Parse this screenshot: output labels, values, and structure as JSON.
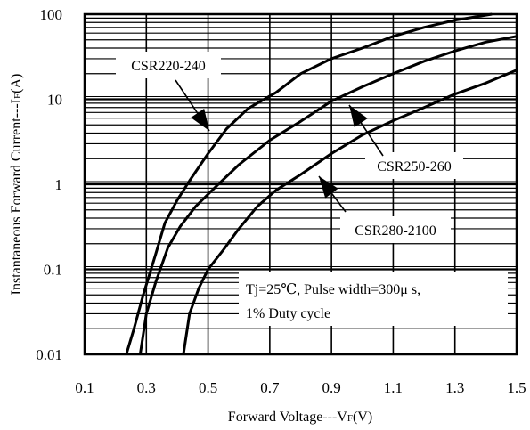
{
  "chart_data": {
    "type": "line",
    "title": "",
    "xlabel": "Forward Voltage---V",
    "xlabel_sub": "F",
    "xlabel_unit": "(V)",
    "ylabel": "Instantaneous Forward Current---I",
    "ylabel_sub": "F",
    "ylabel_unit": "(A)",
    "x_scale": "linear",
    "y_scale": "log",
    "xlim": [
      0.1,
      1.5
    ],
    "ylim": [
      0.01,
      100
    ],
    "x_ticks": [
      0.1,
      0.3,
      0.5,
      0.7,
      0.9,
      1.1,
      1.3,
      1.5
    ],
    "x_tick_labels": [
      "0.1",
      "0.3",
      "0.5",
      "0.7",
      "0.9",
      "1.1",
      "1.3",
      "1.5"
    ],
    "y_ticks": [
      0.01,
      0.1,
      1,
      10,
      100
    ],
    "y_tick_labels": [
      "0.01",
      "0.1",
      "1",
      "10",
      "100"
    ],
    "grid": true,
    "series": [
      {
        "name": "CSR220-240",
        "points": [
          [
            0.235,
            0.01
          ],
          [
            0.26,
            0.02
          ],
          [
            0.29,
            0.05
          ],
          [
            0.33,
            0.15
          ],
          [
            0.36,
            0.35
          ],
          [
            0.4,
            0.65
          ],
          [
            0.44,
            1.1
          ],
          [
            0.5,
            2.3
          ],
          [
            0.56,
            4.5
          ],
          [
            0.63,
            7.8
          ],
          [
            0.72,
            12
          ],
          [
            0.8,
            20
          ],
          [
            0.9,
            30
          ],
          [
            1.0,
            40
          ],
          [
            1.1,
            55
          ],
          [
            1.2,
            70
          ],
          [
            1.3,
            85
          ],
          [
            1.42,
            100
          ]
        ]
      },
      {
        "name": "CSR250-260",
        "points": [
          [
            0.28,
            0.01
          ],
          [
            0.3,
            0.03
          ],
          [
            0.33,
            0.07
          ],
          [
            0.37,
            0.18
          ],
          [
            0.41,
            0.32
          ],
          [
            0.46,
            0.55
          ],
          [
            0.52,
            0.9
          ],
          [
            0.6,
            1.7
          ],
          [
            0.7,
            3.3
          ],
          [
            0.8,
            5.5
          ],
          [
            0.9,
            9.5
          ],
          [
            1.0,
            14
          ],
          [
            1.1,
            20
          ],
          [
            1.2,
            28
          ],
          [
            1.3,
            37
          ],
          [
            1.4,
            47
          ],
          [
            1.5,
            55
          ]
        ]
      },
      {
        "name": "CSR280-2100",
        "points": [
          [
            0.42,
            0.01
          ],
          [
            0.44,
            0.03
          ],
          [
            0.47,
            0.06
          ],
          [
            0.5,
            0.1
          ],
          [
            0.55,
            0.17
          ],
          [
            0.6,
            0.3
          ],
          [
            0.66,
            0.55
          ],
          [
            0.72,
            0.85
          ],
          [
            0.8,
            1.3
          ],
          [
            0.9,
            2.3
          ],
          [
            1.0,
            3.8
          ],
          [
            1.1,
            5.6
          ],
          [
            1.2,
            8
          ],
          [
            1.3,
            11.5
          ],
          [
            1.4,
            15.5
          ],
          [
            1.5,
            22
          ]
        ]
      }
    ],
    "annotations": {
      "note_line1": "Tj=25℃, Pulse width=300μ s,",
      "note_line2": "1% Duty cycle"
    }
  }
}
